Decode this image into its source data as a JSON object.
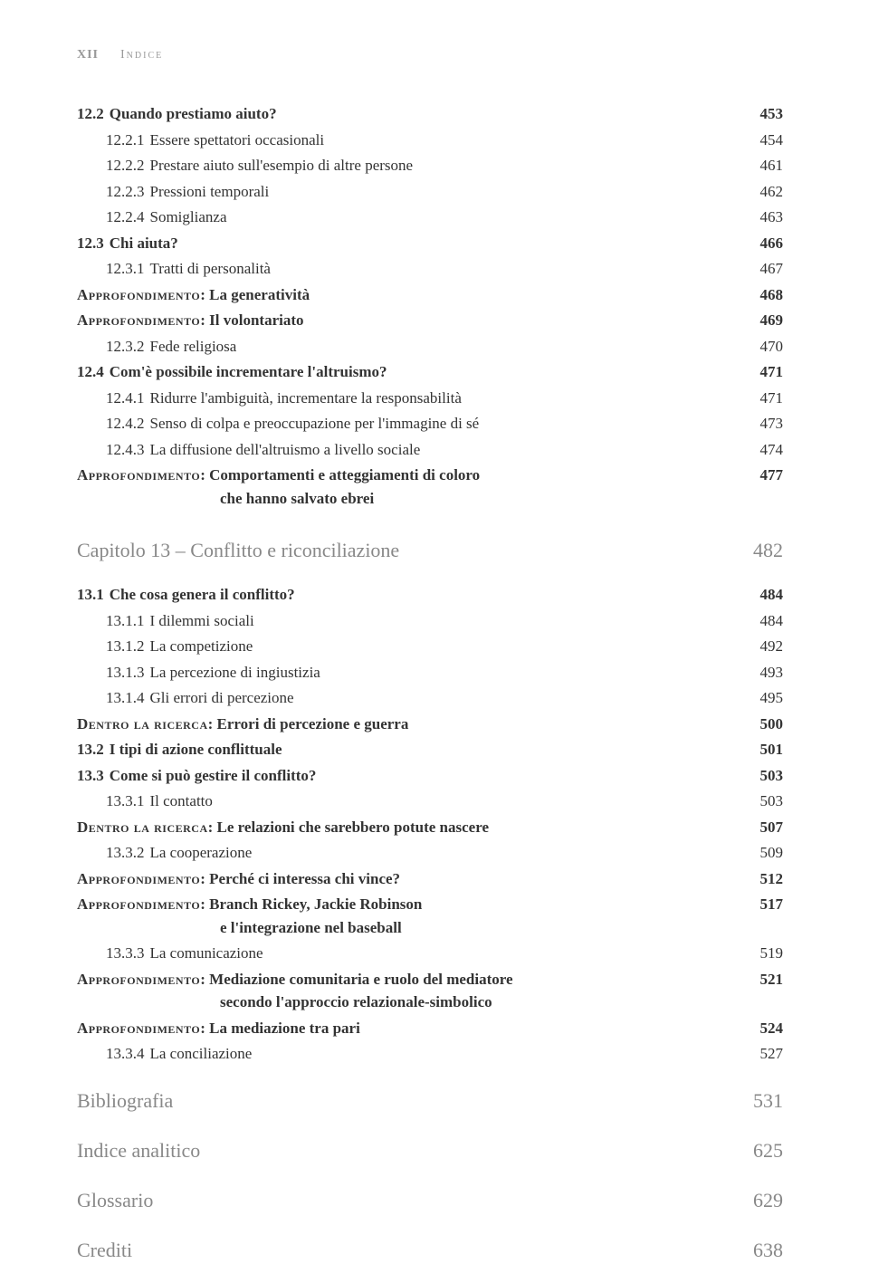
{
  "header": {
    "page_roman": "XII",
    "label": "Indice"
  },
  "colors": {
    "text": "#333333",
    "muted": "#999999",
    "chapter": "#888888",
    "background": "#ffffff"
  },
  "typography": {
    "body_fontsize_pt": 13,
    "chapter_fontsize_pt": 17,
    "font_family": "Georgia / serif"
  },
  "entries": [
    {
      "style": "lvl0",
      "num": "12.2",
      "text": "Quando prestiamo aiuto?",
      "page": "453"
    },
    {
      "style": "lvl1",
      "num": "12.2.1",
      "text": "Essere spettatori occasionali",
      "page": "454"
    },
    {
      "style": "lvl1",
      "num": "12.2.2",
      "text": "Prestare aiuto sull'esempio di altre persone",
      "page": "461"
    },
    {
      "style": "lvl1",
      "num": "12.2.3",
      "text": "Pressioni temporali",
      "page": "462"
    },
    {
      "style": "lvl1",
      "num": "12.2.4",
      "text": "Somiglianza",
      "page": "463"
    },
    {
      "style": "lvl0",
      "num": "12.3",
      "text": "Chi aiuta?",
      "page": "466"
    },
    {
      "style": "lvl1",
      "num": "12.3.1",
      "text": "Tratti di personalità",
      "page": "467"
    },
    {
      "style": "special",
      "prefix": "Approfondimento",
      "text": "La generatività",
      "page": "468"
    },
    {
      "style": "special",
      "prefix": "Approfondimento",
      "text": "Il volontariato",
      "page": "469"
    },
    {
      "style": "lvl1",
      "num": "12.3.2",
      "text": "Fede religiosa",
      "page": "470"
    },
    {
      "style": "lvl0",
      "num": "12.4",
      "text": "Com'è possibile incrementare l'altruismo?",
      "page": "471"
    },
    {
      "style": "lvl1",
      "num": "12.4.1",
      "text": "Ridurre l'ambiguità, incrementare la responsabilità",
      "page": "471"
    },
    {
      "style": "lvl1",
      "num": "12.4.2",
      "text": "Senso di colpa e preoccupazione per l'immagine di sé",
      "page": "473"
    },
    {
      "style": "lvl1",
      "num": "12.4.3",
      "text": "La diffusione dell'altruismo a livello sociale",
      "page": "474"
    },
    {
      "style": "special2",
      "prefix": "Approfondimento",
      "text": "Comportamenti e atteggiamenti di coloro",
      "cont": "che hanno salvato ebrei",
      "page": "477"
    },
    {
      "style": "chapter",
      "text": "Capitolo 13 – Conflitto e riconciliazione",
      "page": "482"
    },
    {
      "style": "lvl0",
      "num": "13.1",
      "text": "Che cosa genera il conflitto?",
      "page": "484"
    },
    {
      "style": "lvl1",
      "num": "13.1.1",
      "text": "I dilemmi sociali",
      "page": "484"
    },
    {
      "style": "lvl1",
      "num": "13.1.2",
      "text": "La competizione",
      "page": "492"
    },
    {
      "style": "lvl1",
      "num": "13.1.3",
      "text": "La percezione di ingiustizia",
      "page": "493"
    },
    {
      "style": "lvl1",
      "num": "13.1.4",
      "text": "Gli errori di percezione",
      "page": "495"
    },
    {
      "style": "special",
      "prefix": "Dentro la ricerca",
      "text": "Errori di percezione e guerra",
      "page": "500"
    },
    {
      "style": "lvl0",
      "num": "13.2",
      "text": "I tipi di azione conflittuale",
      "page": "501"
    },
    {
      "style": "lvl0",
      "num": "13.3",
      "text": "Come si può gestire il conflitto?",
      "page": "503"
    },
    {
      "style": "lvl1",
      "num": "13.3.1",
      "text": "Il contatto",
      "page": "503"
    },
    {
      "style": "special",
      "prefix": "Dentro la ricerca",
      "text": "Le relazioni che sarebbero potute nascere",
      "page": "507"
    },
    {
      "style": "lvl1",
      "num": "13.3.2",
      "text": "La cooperazione",
      "page": "509"
    },
    {
      "style": "special",
      "prefix": "Approfondimento",
      "text": "Perché ci interessa chi vince?",
      "page": "512"
    },
    {
      "style": "special2",
      "prefix": "Approfondimento",
      "text": "Branch Rickey, Jackie Robinson",
      "cont": "e l'integrazione nel baseball",
      "page": "517"
    },
    {
      "style": "lvl1",
      "num": "13.3.3",
      "text": "La comunicazione",
      "page": "519"
    },
    {
      "style": "special2",
      "prefix": "Approfondimento",
      "text": "Mediazione comunitaria e ruolo del mediatore",
      "cont": "secondo l'approccio relazionale-simbolico",
      "page": "521"
    },
    {
      "style": "special",
      "prefix": "Approfondimento",
      "text": "La mediazione tra pari",
      "page": "524"
    },
    {
      "style": "lvl1",
      "num": "13.3.4",
      "text": "La conciliazione",
      "page": "527"
    },
    {
      "style": "backmatter",
      "text": "Bibliografia",
      "page": "531"
    },
    {
      "style": "backmatter",
      "text": "Indice analitico",
      "page": "625"
    },
    {
      "style": "backmatter",
      "text": "Glossario",
      "page": "629"
    },
    {
      "style": "backmatter",
      "text": "Crediti",
      "page": "638"
    }
  ]
}
